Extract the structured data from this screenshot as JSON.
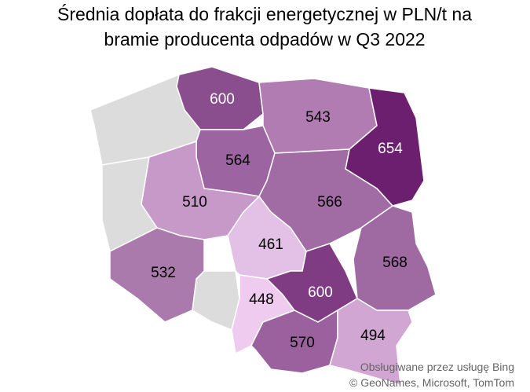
{
  "chart_data": {
    "type": "map",
    "title": [
      "Średnia dopłata do frakcji energetycznej w PLN/t na",
      "bramie producenta odpadów w Q3 2022"
    ],
    "values": [
      600,
      543,
      654,
      564,
      566,
      510,
      461,
      568,
      532,
      448,
      600,
      570,
      494
    ],
    "colors": [
      "#8a4e8e",
      "#b07cb1",
      "#6c1f6e",
      "#9c64a0",
      "#a16ca4",
      "#c699c9",
      "#e3c0e5",
      "#9f6aa2",
      "#ab7aad",
      "#efcbef",
      "#7f3c83",
      "#9b619e",
      "#d1a6d2"
    ]
  },
  "attribution": [
    "Obsługiwane przez usługę Bing",
    "© GeoNames, Microsoft, TomTom"
  ]
}
